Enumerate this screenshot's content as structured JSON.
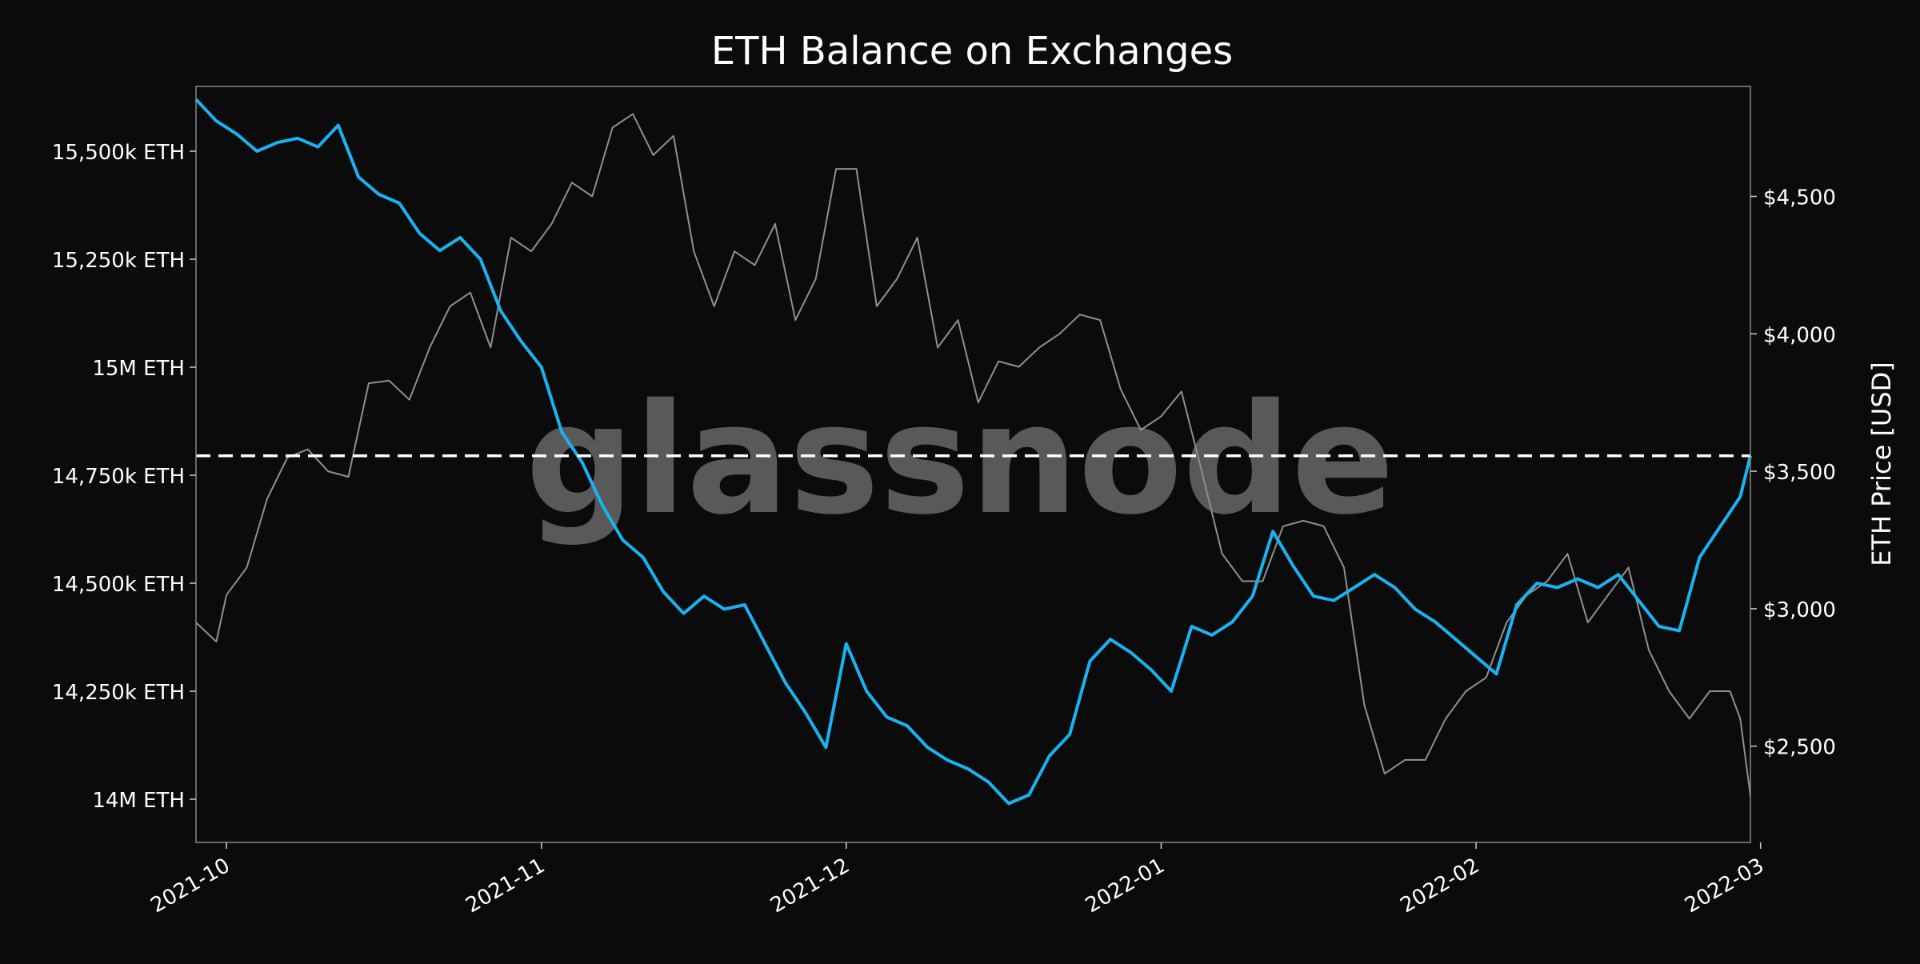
{
  "chart_data": {
    "type": "line",
    "title": "ETH Balance on Exchanges",
    "watermark": "glassnode",
    "x_range": [
      "2021-09-28",
      "2022-02-28"
    ],
    "x_ticks": [
      {
        "date": "2021-10-01",
        "label": "2021-10"
      },
      {
        "date": "2021-11-01",
        "label": "2021-11"
      },
      {
        "date": "2021-12-01",
        "label": "2021-12"
      },
      {
        "date": "2022-01-01",
        "label": "2022-01"
      },
      {
        "date": "2022-02-01",
        "label": "2022-02"
      },
      {
        "date": "2022-03-01",
        "label": "2022-03"
      }
    ],
    "y_left": {
      "label": "",
      "unit": "ETH",
      "range": [
        13900000,
        15650000
      ],
      "ticks": [
        {
          "value": 14000000,
          "label": "14M ETH"
        },
        {
          "value": 14250000,
          "label": "14,250k ETH"
        },
        {
          "value": 14500000,
          "label": "14,500k ETH"
        },
        {
          "value": 14750000,
          "label": "14,750k ETH"
        },
        {
          "value": 15000000,
          "label": "15M ETH"
        },
        {
          "value": 15250000,
          "label": "15,250k ETH"
        },
        {
          "value": 15500000,
          "label": "15,500k ETH"
        }
      ]
    },
    "y_right": {
      "label": "ETH Price [USD]",
      "range": [
        2150,
        4900
      ],
      "ticks": [
        {
          "value": 2500,
          "label": "$2,500"
        },
        {
          "value": 3000,
          "label": "$3,000"
        },
        {
          "value": 3500,
          "label": "$3,500"
        },
        {
          "value": 4000,
          "label": "$4,000"
        },
        {
          "value": 4500,
          "label": "$4,500"
        }
      ]
    },
    "reference_line": {
      "axis": "left",
      "value": 14795000,
      "style": "dashed",
      "color": "#ffffff"
    },
    "grid": false,
    "series": [
      {
        "axis": "left",
        "color": "#1ab2f0",
        "points": [
          [
            "2021-09-28",
            15620000
          ],
          [
            "2021-09-30",
            15570000
          ],
          [
            "2021-10-02",
            15540000
          ],
          [
            "2021-10-04",
            15500000
          ],
          [
            "2021-10-06",
            15520000
          ],
          [
            "2021-10-08",
            15530000
          ],
          [
            "2021-10-10",
            15510000
          ],
          [
            "2021-10-12",
            15560000
          ],
          [
            "2021-10-14",
            15440000
          ],
          [
            "2021-10-16",
            15400000
          ],
          [
            "2021-10-18",
            15380000
          ],
          [
            "2021-10-20",
            15310000
          ],
          [
            "2021-10-22",
            15270000
          ],
          [
            "2021-10-24",
            15300000
          ],
          [
            "2021-10-26",
            15250000
          ],
          [
            "2021-10-28",
            15130000
          ],
          [
            "2021-10-30",
            15060000
          ],
          [
            "2021-11-01",
            15000000
          ],
          [
            "2021-11-03",
            14850000
          ],
          [
            "2021-11-05",
            14780000
          ],
          [
            "2021-11-07",
            14680000
          ],
          [
            "2021-11-09",
            14600000
          ],
          [
            "2021-11-11",
            14560000
          ],
          [
            "2021-11-13",
            14480000
          ],
          [
            "2021-11-15",
            14430000
          ],
          [
            "2021-11-17",
            14470000
          ],
          [
            "2021-11-19",
            14440000
          ],
          [
            "2021-11-21",
            14450000
          ],
          [
            "2021-11-23",
            14360000
          ],
          [
            "2021-11-25",
            14270000
          ],
          [
            "2021-11-27",
            14200000
          ],
          [
            "2021-11-29",
            14120000
          ],
          [
            "2021-12-01",
            14360000
          ],
          [
            "2021-12-03",
            14250000
          ],
          [
            "2021-12-05",
            14190000
          ],
          [
            "2021-12-07",
            14170000
          ],
          [
            "2021-12-09",
            14120000
          ],
          [
            "2021-12-11",
            14090000
          ],
          [
            "2021-12-13",
            14070000
          ],
          [
            "2021-12-15",
            14040000
          ],
          [
            "2021-12-17",
            13990000
          ],
          [
            "2021-12-19",
            14010000
          ],
          [
            "2021-12-21",
            14100000
          ],
          [
            "2021-12-23",
            14150000
          ],
          [
            "2021-12-25",
            14320000
          ],
          [
            "2021-12-27",
            14370000
          ],
          [
            "2021-12-29",
            14340000
          ],
          [
            "2021-12-31",
            14300000
          ],
          [
            "2022-01-02",
            14250000
          ],
          [
            "2022-01-04",
            14400000
          ],
          [
            "2022-01-06",
            14380000
          ],
          [
            "2022-01-08",
            14410000
          ],
          [
            "2022-01-10",
            14470000
          ],
          [
            "2022-01-12",
            14620000
          ],
          [
            "2022-01-14",
            14540000
          ],
          [
            "2022-01-16",
            14470000
          ],
          [
            "2022-01-18",
            14460000
          ],
          [
            "2022-01-20",
            14490000
          ],
          [
            "2022-01-22",
            14520000
          ],
          [
            "2022-01-24",
            14490000
          ],
          [
            "2022-01-26",
            14440000
          ],
          [
            "2022-01-28",
            14410000
          ],
          [
            "2022-01-30",
            14370000
          ],
          [
            "2022-02-01",
            14330000
          ],
          [
            "2022-02-03",
            14290000
          ],
          [
            "2022-02-05",
            14450000
          ],
          [
            "2022-02-07",
            14500000
          ],
          [
            "2022-02-09",
            14490000
          ],
          [
            "2022-02-11",
            14510000
          ],
          [
            "2022-02-13",
            14490000
          ],
          [
            "2022-02-15",
            14520000
          ],
          [
            "2022-02-17",
            14460000
          ],
          [
            "2022-02-19",
            14400000
          ],
          [
            "2022-02-21",
            14390000
          ],
          [
            "2022-02-23",
            14560000
          ],
          [
            "2022-02-25",
            14630000
          ],
          [
            "2022-02-27",
            14700000
          ],
          [
            "2022-02-28",
            14795000
          ]
        ]
      },
      {
        "axis": "right",
        "color": "#8f8f8f",
        "points": [
          [
            "2021-09-28",
            2950
          ],
          [
            "2021-09-30",
            2880
          ],
          [
            "2021-10-01",
            3050
          ],
          [
            "2021-10-03",
            3150
          ],
          [
            "2021-10-05",
            3400
          ],
          [
            "2021-10-07",
            3550
          ],
          [
            "2021-10-09",
            3580
          ],
          [
            "2021-10-11",
            3500
          ],
          [
            "2021-10-13",
            3480
          ],
          [
            "2021-10-15",
            3820
          ],
          [
            "2021-10-17",
            3830
          ],
          [
            "2021-10-19",
            3760
          ],
          [
            "2021-10-21",
            3950
          ],
          [
            "2021-10-23",
            4100
          ],
          [
            "2021-10-25",
            4150
          ],
          [
            "2021-10-27",
            3950
          ],
          [
            "2021-10-29",
            4350
          ],
          [
            "2021-10-31",
            4300
          ],
          [
            "2021-11-02",
            4400
          ],
          [
            "2021-11-04",
            4550
          ],
          [
            "2021-11-06",
            4500
          ],
          [
            "2021-11-08",
            4750
          ],
          [
            "2021-11-10",
            4800
          ],
          [
            "2021-11-12",
            4650
          ],
          [
            "2021-11-14",
            4720
          ],
          [
            "2021-11-16",
            4300
          ],
          [
            "2021-11-18",
            4100
          ],
          [
            "2021-11-20",
            4300
          ],
          [
            "2021-11-22",
            4250
          ],
          [
            "2021-11-24",
            4400
          ],
          [
            "2021-11-26",
            4050
          ],
          [
            "2021-11-28",
            4200
          ],
          [
            "2021-11-30",
            4600
          ],
          [
            "2021-12-02",
            4600
          ],
          [
            "2021-12-04",
            4100
          ],
          [
            "2021-12-06",
            4200
          ],
          [
            "2021-12-08",
            4350
          ],
          [
            "2021-12-10",
            3950
          ],
          [
            "2021-12-12",
            4050
          ],
          [
            "2021-12-14",
            3750
          ],
          [
            "2021-12-16",
            3900
          ],
          [
            "2021-12-18",
            3880
          ],
          [
            "2021-12-20",
            3950
          ],
          [
            "2021-12-22",
            4000
          ],
          [
            "2021-12-24",
            4070
          ],
          [
            "2021-12-26",
            4050
          ],
          [
            "2021-12-28",
            3800
          ],
          [
            "2021-12-30",
            3650
          ],
          [
            "2022-01-01",
            3700
          ],
          [
            "2022-01-03",
            3790
          ],
          [
            "2022-01-05",
            3500
          ],
          [
            "2022-01-07",
            3200
          ],
          [
            "2022-01-09",
            3100
          ],
          [
            "2022-01-11",
            3100
          ],
          [
            "2022-01-13",
            3300
          ],
          [
            "2022-01-15",
            3320
          ],
          [
            "2022-01-17",
            3300
          ],
          [
            "2022-01-19",
            3150
          ],
          [
            "2022-01-21",
            2650
          ],
          [
            "2022-01-23",
            2400
          ],
          [
            "2022-01-25",
            2450
          ],
          [
            "2022-01-27",
            2450
          ],
          [
            "2022-01-29",
            2600
          ],
          [
            "2022-01-31",
            2700
          ],
          [
            "2022-02-02",
            2750
          ],
          [
            "2022-02-04",
            2950
          ],
          [
            "2022-02-06",
            3050
          ],
          [
            "2022-02-08",
            3100
          ],
          [
            "2022-02-10",
            3200
          ],
          [
            "2022-02-12",
            2950
          ],
          [
            "2022-02-14",
            3050
          ],
          [
            "2022-02-16",
            3150
          ],
          [
            "2022-02-18",
            2850
          ],
          [
            "2022-02-20",
            2700
          ],
          [
            "2022-02-22",
            2600
          ],
          [
            "2022-02-24",
            2700
          ],
          [
            "2022-02-26",
            2700
          ],
          [
            "2022-02-27",
            2600
          ],
          [
            "2022-02-28",
            2320
          ]
        ]
      }
    ]
  }
}
